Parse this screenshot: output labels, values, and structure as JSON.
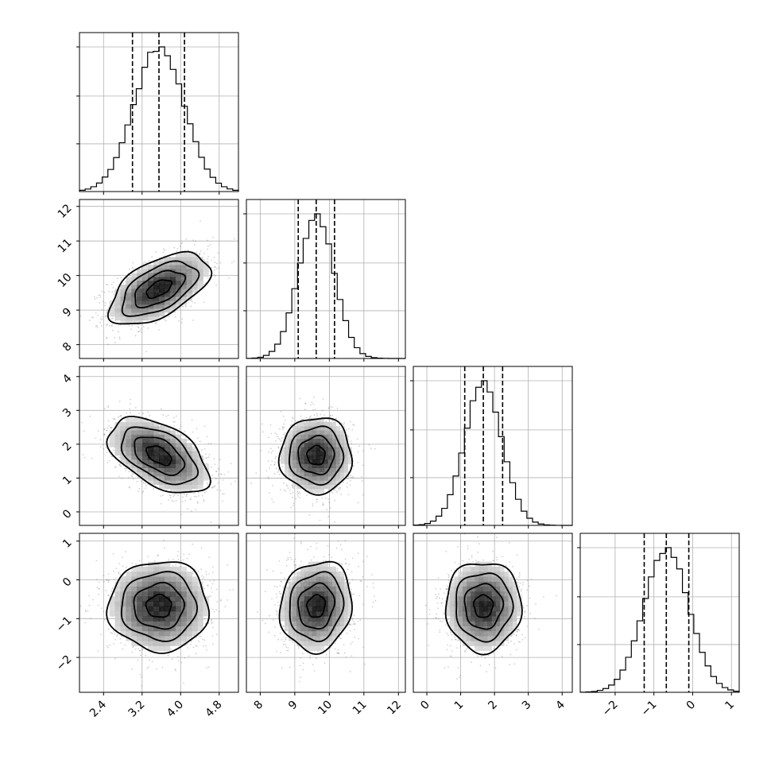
{
  "chart_data": {
    "type": "corner",
    "grid": true,
    "parameters": [
      {
        "id": "p0",
        "range": [
          1.9,
          5.2
        ],
        "ticks": [
          2.4,
          3.2,
          4.0,
          4.8
        ],
        "tick_labels": [
          "2.4",
          "3.2",
          "4.0",
          "4.8"
        ],
        "mean": 3.55,
        "sigma": 0.52,
        "quantiles": [
          3.0,
          3.55,
          4.08
        ]
      },
      {
        "id": "p1",
        "range": [
          7.6,
          12.2
        ],
        "ticks": [
          8,
          9,
          10,
          11,
          12
        ],
        "tick_labels": [
          "8",
          "9",
          "10",
          "11",
          "12"
        ],
        "mean": 9.62,
        "sigma": 0.52,
        "quantiles": [
          9.1,
          9.62,
          10.15
        ]
      },
      {
        "id": "p2",
        "range": [
          -0.4,
          4.3
        ],
        "ticks": [
          0,
          1,
          2,
          3,
          4
        ],
        "tick_labels": [
          "0",
          "1",
          "2",
          "3",
          "4"
        ],
        "mean": 1.67,
        "sigma": 0.56,
        "quantiles": [
          1.12,
          1.67,
          2.24
        ]
      },
      {
        "id": "p3",
        "range": [
          -2.9,
          1.2
        ],
        "ticks": [
          -2,
          -1,
          0,
          1
        ],
        "tick_labels": [
          "−2",
          "−1",
          "0",
          "1"
        ],
        "mean": -0.68,
        "sigma": 0.58,
        "quantiles": [
          -1.25,
          -0.68,
          -0.1
        ]
      }
    ],
    "correlations": {
      "0-1": 0.55,
      "0-2": -0.5,
      "0-3": 0.0,
      "1-2": 0.0,
      "1-3": 0.1,
      "2-3": 0.0
    }
  }
}
